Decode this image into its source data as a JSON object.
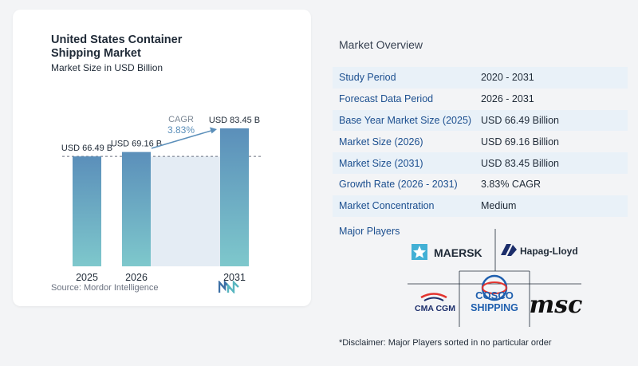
{
  "chart_data": {
    "type": "bar",
    "title": "United States Container Shipping Market",
    "subtitle": "Market Size in USD Billion",
    "categories": [
      "2025",
      "2026",
      "2031"
    ],
    "values": [
      66.49,
      69.16,
      83.45
    ],
    "data_labels": [
      "USD 66.49 B",
      "USD 69.16 B",
      "USD 83.45 B"
    ],
    "cagr_label": "CAGR",
    "cagr_value": "3.83%",
    "xlabel": "",
    "ylabel": "",
    "ylim": [
      0,
      83.45
    ],
    "colors": {
      "bar_top": "#5b8fba",
      "bar_bottom": "#7ec8cc",
      "band": "#e4ecf4",
      "arrow": "#5b8fba",
      "cagr": "#5b8fba"
    }
  },
  "source": "Source: Mordor Intelligence",
  "overview": {
    "title": "Market Overview",
    "rows": [
      {
        "label": "Study Period",
        "value": "2020 - 2031"
      },
      {
        "label": "Forecast Data Period",
        "value": "2026 - 2031"
      },
      {
        "label": "Base Year Market Size (2025)",
        "value": "USD 66.49 Billion"
      },
      {
        "label": "Market Size (2026)",
        "value": "USD 69.16 Billion"
      },
      {
        "label": "Market Size (2031)",
        "value": "USD 83.45 Billion"
      },
      {
        "label": "Growth Rate (2026 - 2031)",
        "value": "3.83% CAGR"
      },
      {
        "label": "Market Concentration",
        "value": "Medium"
      }
    ]
  },
  "players": {
    "title": "Major Players",
    "logos": [
      "MAERSK",
      "Hapag-Lloyd",
      "CMA CGM",
      "COSCO",
      "SHIPPING",
      "msc"
    ]
  },
  "disclaimer": "*Disclaimer: Major Players sorted in no particular order"
}
